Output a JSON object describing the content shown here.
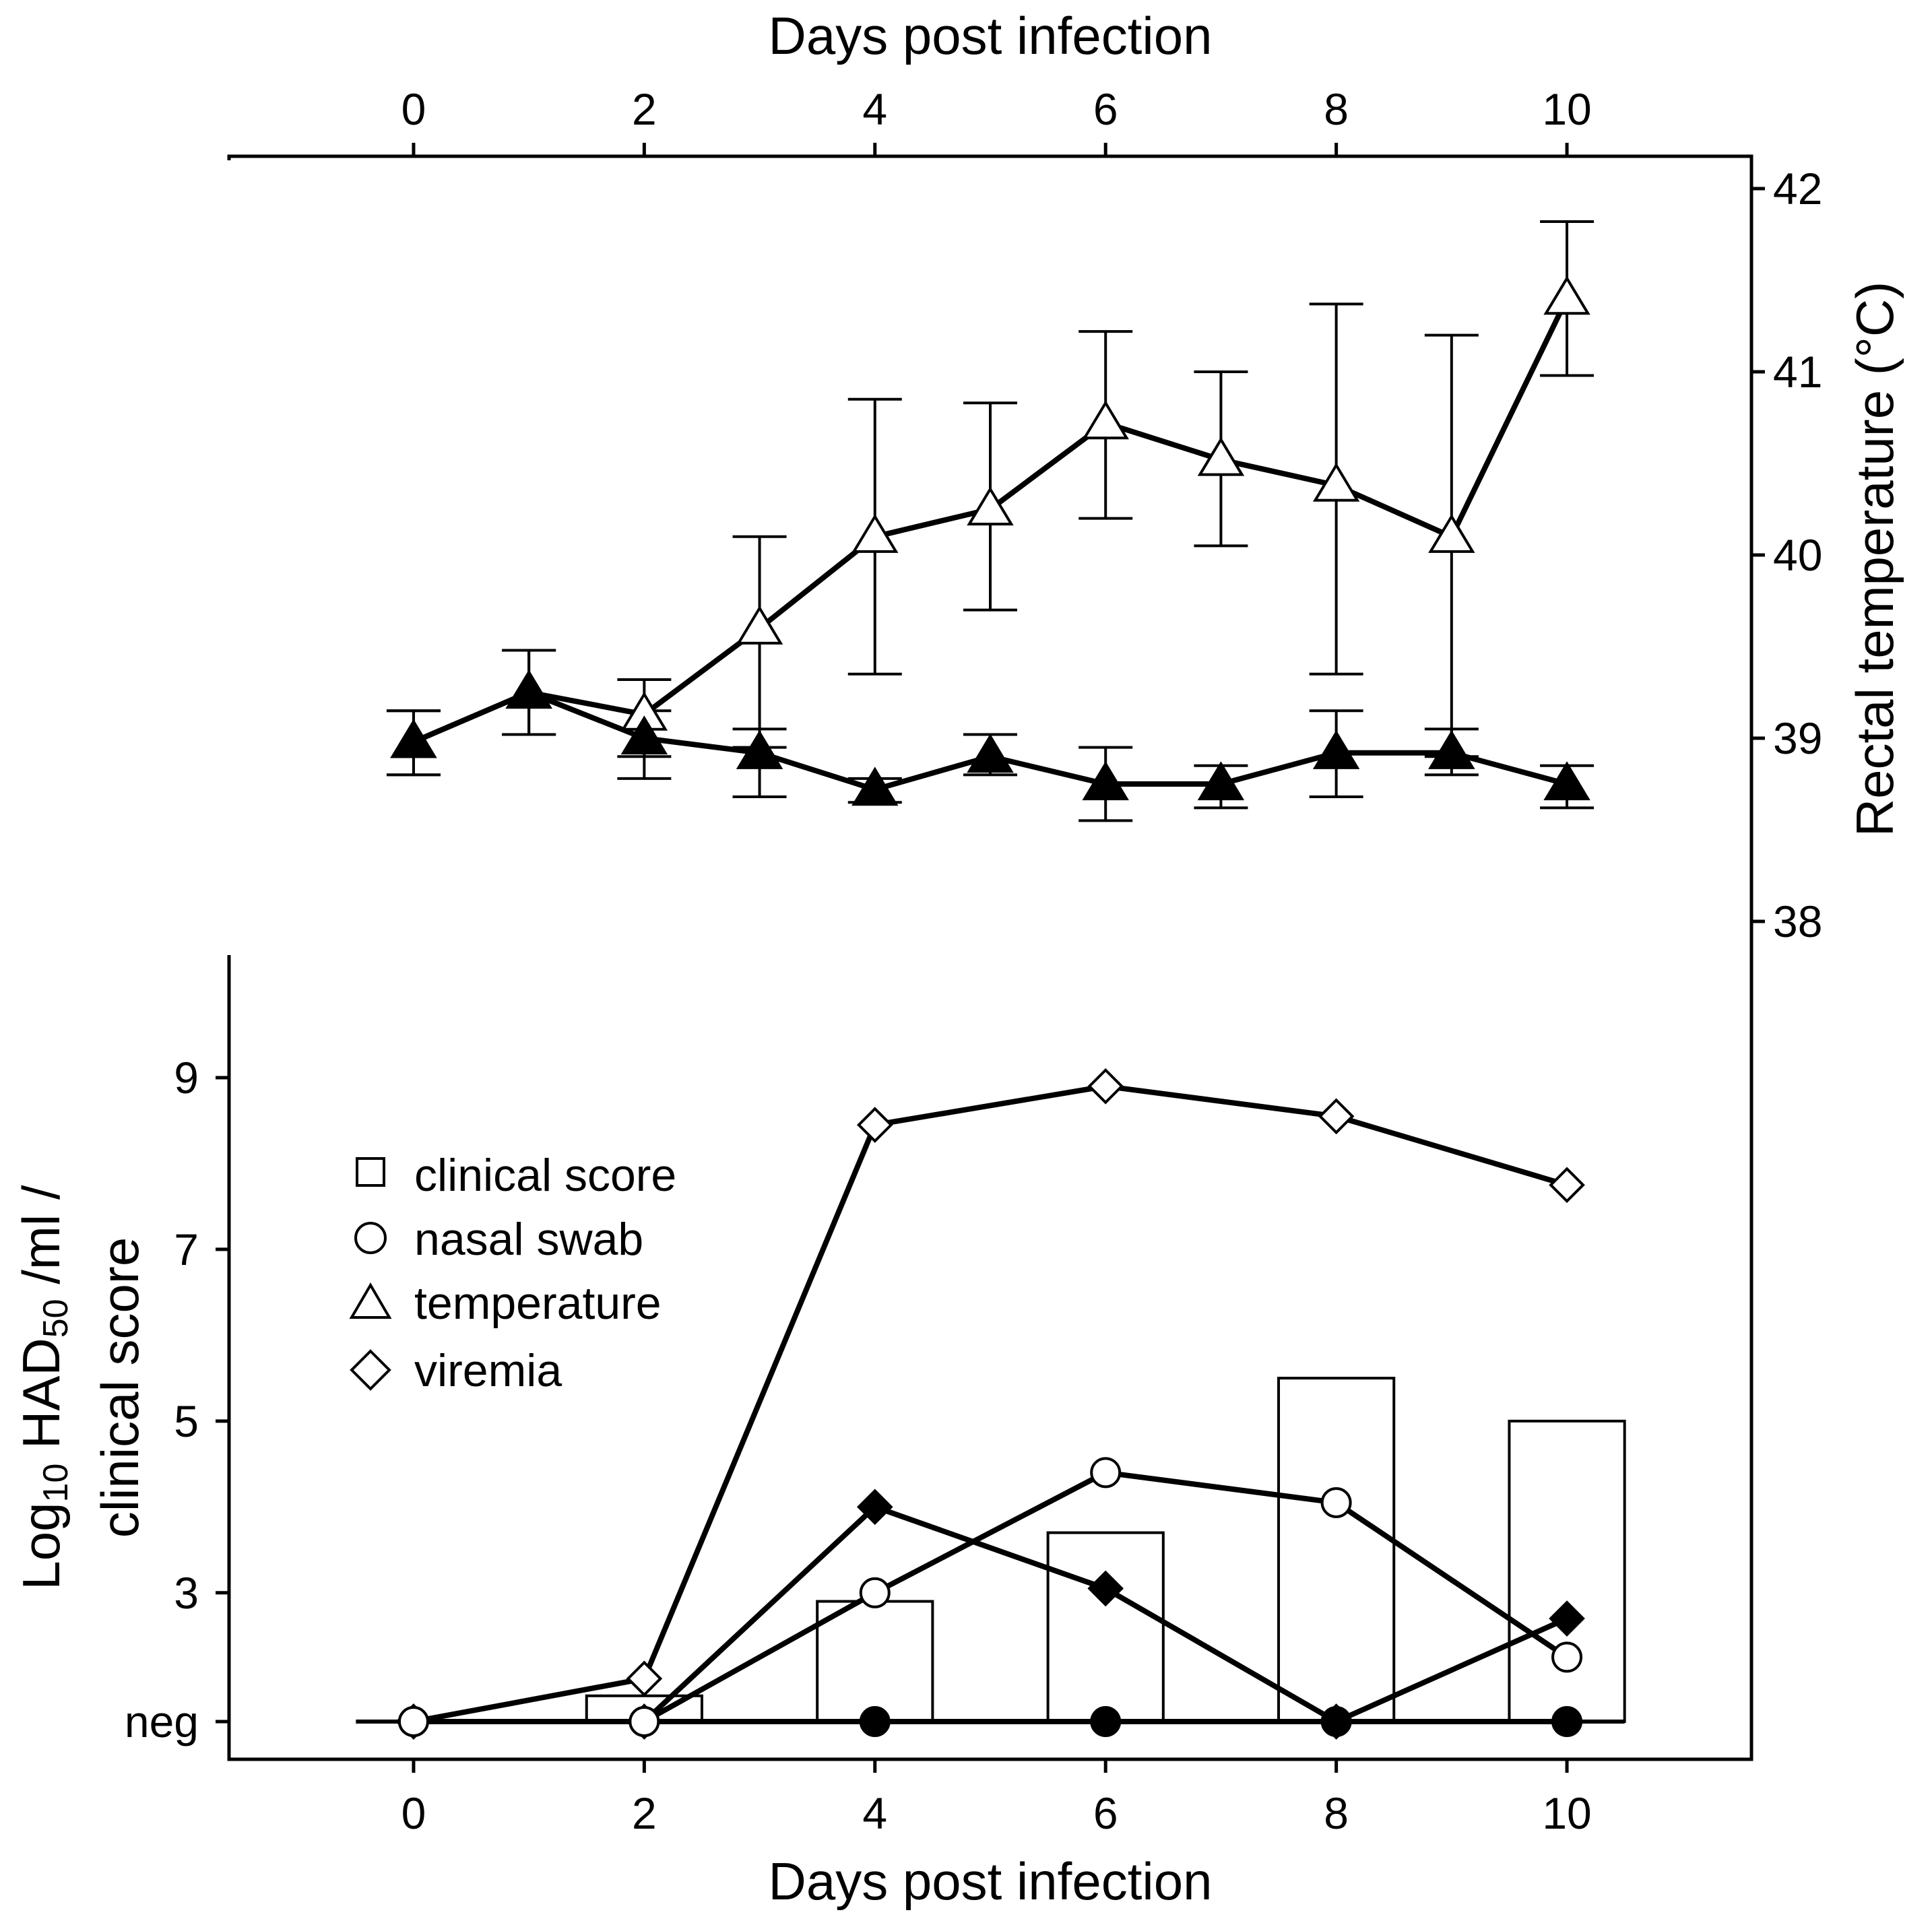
{
  "chart_data": {
    "type": "line",
    "x_label_top": "Days post infection",
    "x_label_bottom": "Days post infection",
    "x_ticks": [
      "0",
      "2",
      "4",
      "6",
      "8",
      "10"
    ],
    "x_range": [
      -1.6,
      11.6
    ],
    "right_axis": {
      "label": "Rectal temperature (°C)",
      "ticks": [
        "38",
        "39",
        "40",
        "41",
        "42"
      ],
      "range": [
        38,
        42
      ]
    },
    "left_axis": {
      "label_line1_main": "Log",
      "label_line1_sub": "10",
      "label_line1_mid": " HAD",
      "label_line1_sub2": "50",
      "label_line1_tail": " /ml /",
      "label_line2": "clinical score",
      "ticks": [
        "neg",
        "3",
        "5",
        "7",
        "9"
      ],
      "range": [
        1.5,
        9
      ]
    },
    "legend": {
      "placement": "middle-left",
      "items": [
        {
          "symbol": "square",
          "label": "clinical score"
        },
        {
          "symbol": "circle",
          "label": "nasal swab"
        },
        {
          "symbol": "triangle",
          "label": "temperature"
        },
        {
          "symbol": "diamond",
          "label": "viremia"
        }
      ]
    },
    "temperature_series": [
      {
        "fill": "open",
        "x": [
          0,
          1,
          2,
          3,
          4,
          5,
          6,
          7,
          8,
          9,
          10
        ],
        "y": [
          38.98,
          39.25,
          39.13,
          39.6,
          40.1,
          40.25,
          40.72,
          40.52,
          40.38,
          40.1,
          41.4
        ],
        "err_low": [
          38.8,
          39.02,
          38.9,
          38.95,
          39.35,
          39.7,
          40.2,
          40.05,
          39.35,
          38.9,
          40.98
        ],
        "err_high": [
          39.15,
          39.48,
          39.32,
          40.1,
          40.85,
          40.83,
          41.22,
          41.0,
          41.37,
          41.2,
          41.82
        ]
      },
      {
        "fill": "filled",
        "x": [
          0,
          1,
          2,
          3,
          4,
          5,
          6,
          7,
          8,
          9,
          10
        ],
        "y": [
          38.98,
          39.25,
          39.0,
          38.92,
          38.72,
          38.9,
          38.75,
          38.75,
          38.92,
          38.92,
          38.75
        ],
        "err_low": [
          38.8,
          39.02,
          38.78,
          38.68,
          38.65,
          38.8,
          38.55,
          38.62,
          38.68,
          38.8,
          38.62
        ],
        "err_high": [
          39.15,
          39.48,
          39.15,
          39.05,
          38.78,
          39.02,
          38.95,
          38.85,
          39.15,
          39.05,
          38.85
        ]
      }
    ],
    "clinical_score_bars": {
      "x": [
        2,
        4,
        6,
        8,
        10
      ],
      "values": [
        1.8,
        2.9,
        3.7,
        5.5,
        5.0
      ]
    },
    "viremia_series": [
      {
        "fill": "open",
        "x": [
          0,
          2,
          4,
          6,
          8,
          10
        ],
        "y": [
          1.5,
          2.0,
          8.45,
          8.9,
          8.55,
          7.75
        ]
      },
      {
        "fill": "filled",
        "x": [
          0,
          2,
          4,
          6,
          8,
          10
        ],
        "y": [
          1.5,
          1.5,
          4.0,
          3.05,
          1.5,
          2.7
        ]
      }
    ],
    "nasal_swab_series": [
      {
        "fill": "open",
        "x": [
          0,
          2,
          4,
          6,
          8,
          10
        ],
        "y": [
          1.5,
          1.5,
          3.0,
          4.4,
          4.05,
          2.25
        ]
      },
      {
        "fill": "filled",
        "x": [
          0,
          2,
          4,
          6,
          8,
          10
        ],
        "y": [
          1.5,
          1.5,
          1.5,
          1.5,
          1.5,
          1.5
        ]
      }
    ]
  }
}
